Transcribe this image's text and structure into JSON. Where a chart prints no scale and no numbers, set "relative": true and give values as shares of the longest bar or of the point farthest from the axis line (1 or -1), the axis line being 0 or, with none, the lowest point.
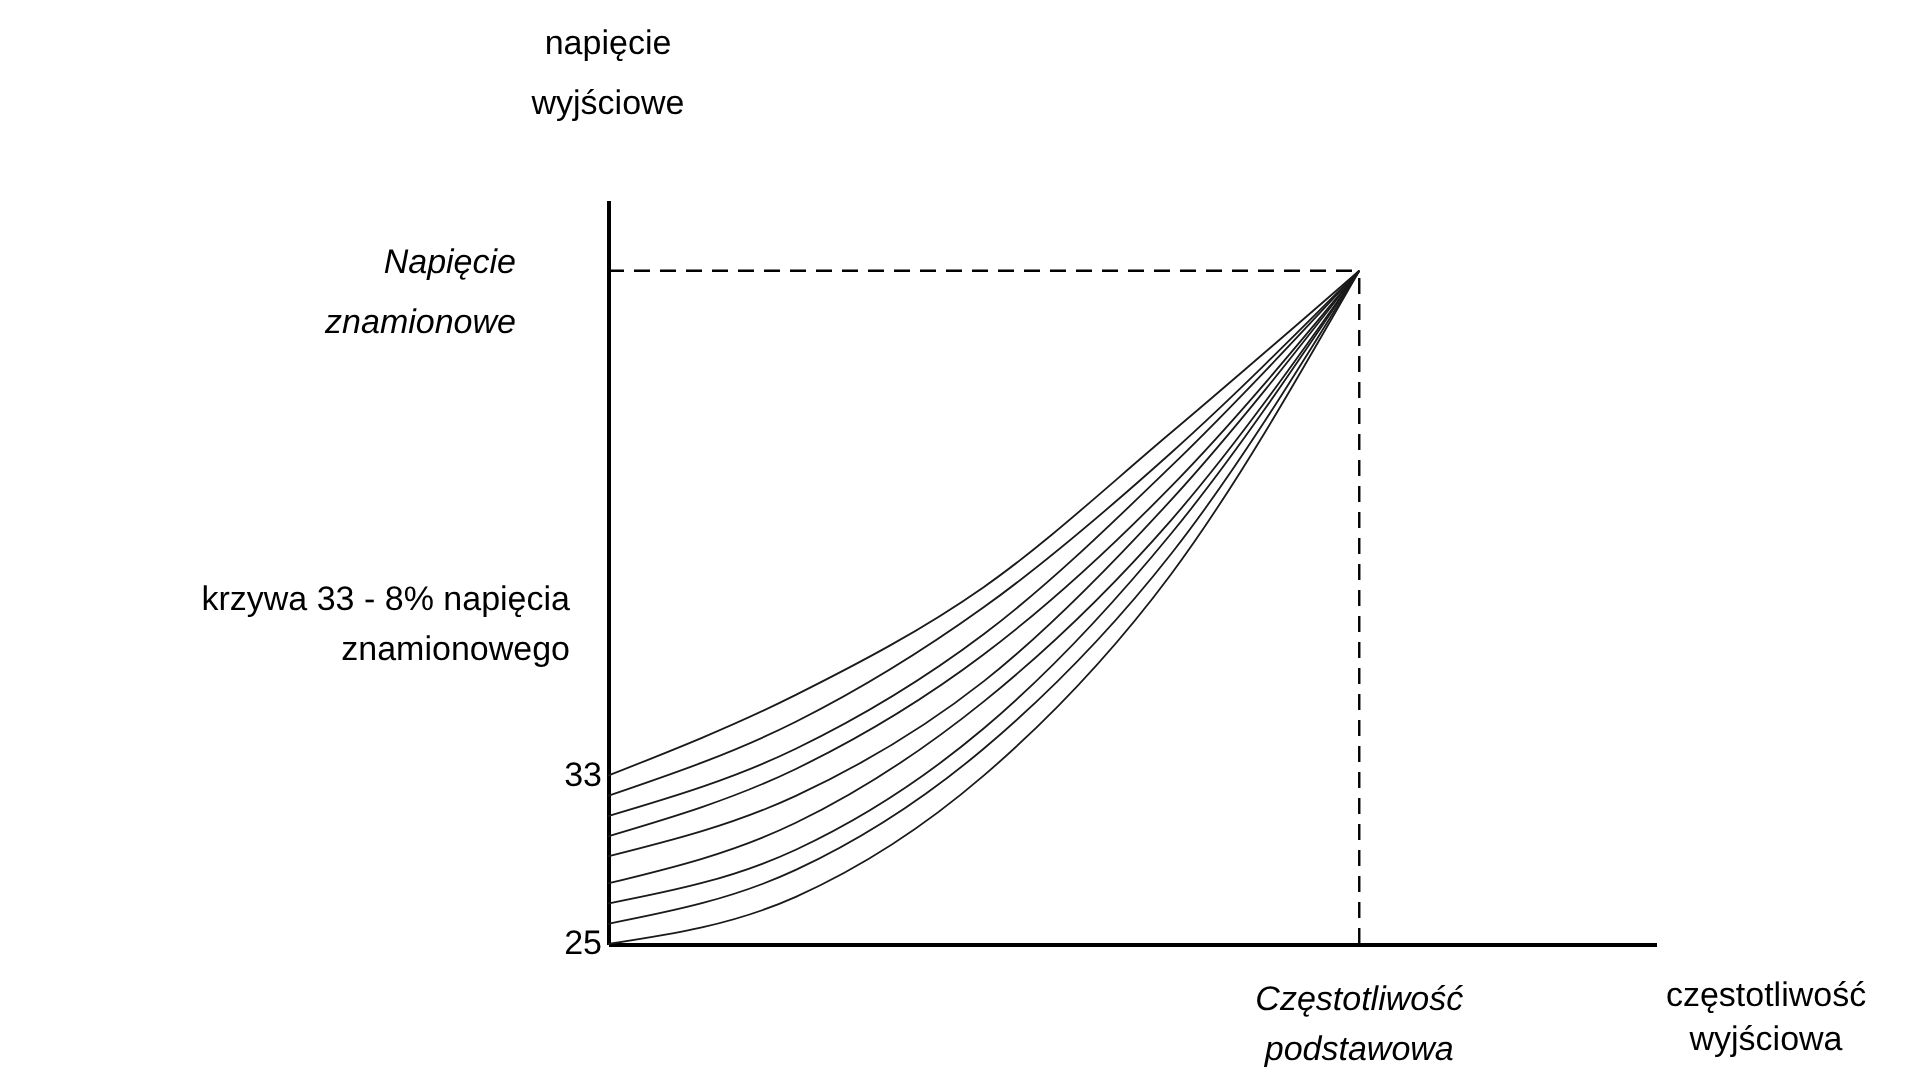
{
  "chart_data": {
    "type": "line",
    "relative": true,
    "ylabel": "napięcie wyjściowe",
    "categories": [
      null,
      null,
      null,
      null,
      null
    ],
    "series": [
      {
        "color": "#1a1a1a",
        "values": [
          0.25,
          0.37,
          0.53,
          0.76,
          1
        ]
      },
      {
        "color": "#1a1a1a",
        "values": [
          0.22,
          0.33,
          0.5,
          0.73,
          1
        ]
      },
      {
        "color": "#1a1a1a",
        "values": [
          0.19,
          0.29,
          0.46,
          0.71,
          1
        ]
      },
      {
        "color": "#1a1a1a",
        "values": [
          0.16,
          0.26,
          0.43,
          0.68,
          1
        ]
      },
      {
        "color": "#1a1a1a",
        "values": [
          0.13,
          0.22,
          0.39,
          0.66,
          1
        ]
      },
      {
        "color": "#1a1a1a",
        "values": [
          0.09,
          0.18,
          0.36,
          0.63,
          1
        ]
      },
      {
        "color": "#1a1a1a",
        "values": [
          0.06,
          0.14,
          0.32,
          0.61,
          1
        ]
      },
      {
        "color": "#1a1a1a",
        "values": [
          0.03,
          0.11,
          0.29,
          0.58,
          1
        ]
      },
      {
        "color": "#1a1a1a",
        "values": [
          0,
          0.07,
          0.25,
          0.55,
          1
        ]
      }
    ],
    "ref_lines": [
      {
        "axis": "y",
        "value": 1,
        "label": "Napięcie znamionowe",
        "line_style": "dashed"
      }
    ],
    "annotations": [
      "krzywa 33 - 8% napięcia znamionowego",
      "33",
      "25",
      "Częstotliwość podstawowa",
      "częstotliwość wyjściowa"
    ]
  }
}
